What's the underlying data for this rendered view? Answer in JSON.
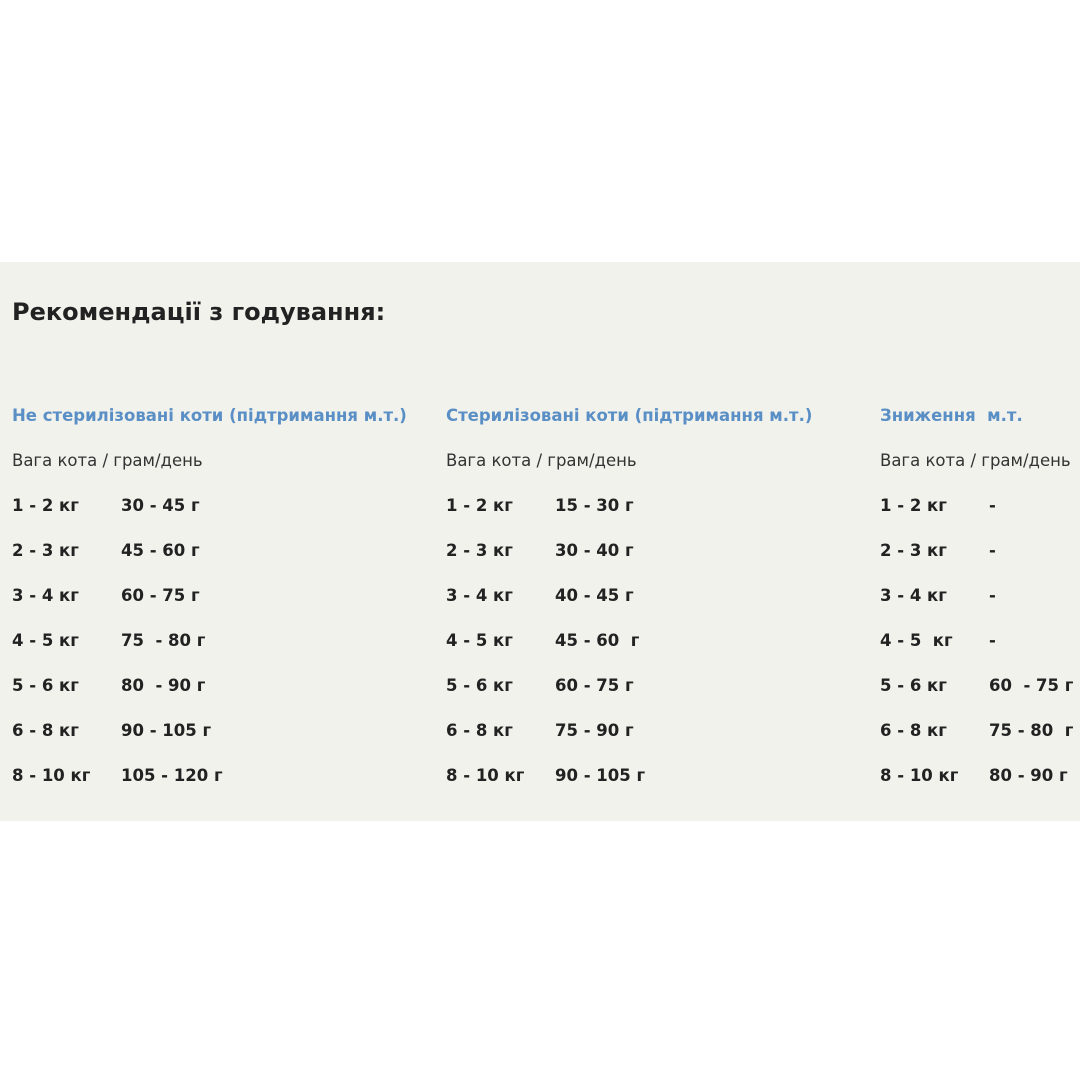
{
  "title": "Рекомендації з годування:",
  "sections": [
    {
      "heading": "Не стерилізовані коти (підтримання м.т.)",
      "subheading": "Вага кота / грам/день",
      "rows": [
        [
          "1 - 2 кг",
          "30 - 45 г"
        ],
        [
          "2 - 3 кг",
          "45 - 60 г"
        ],
        [
          "3 - 4 кг",
          "60 - 75 г"
        ],
        [
          "4 - 5 кг",
          "75  - 80 г"
        ],
        [
          "5 - 6 кг",
          "80  - 90 г"
        ],
        [
          "6 - 8 кг",
          "90 - 105 г"
        ],
        [
          "8 - 10 кг",
          "105 - 120 г"
        ]
      ]
    },
    {
      "heading": "Стерилізовані коти (підтримання м.т.)",
      "subheading": "Вага кота / грам/день",
      "rows": [
        [
          "1 - 2 кг",
          "15 - 30 г"
        ],
        [
          "2 - 3 кг",
          "30 - 40 г"
        ],
        [
          "3 - 4 кг",
          "40 - 45 г"
        ],
        [
          "4 - 5 кг",
          "45 - 60  г"
        ],
        [
          "5 - 6 кг",
          "60 - 75 г"
        ],
        [
          "6 - 8 кг",
          "75 - 90 г"
        ],
        [
          "8 - 10 кг",
          "90 - 105 г"
        ]
      ]
    },
    {
      "heading": "Зниження  м.т.",
      "subheading": "Вага кота / грам/день",
      "rows": [
        [
          "1 - 2 кг",
          "-"
        ],
        [
          "2 - 3 кг",
          "-"
        ],
        [
          "3 - 4 кг",
          "-"
        ],
        [
          "4 - 5  кг",
          "-"
        ],
        [
          "5 - 6 кг",
          "60  - 75 г"
        ],
        [
          "6 - 8 кг",
          "75 - 80  г"
        ],
        [
          "8 - 10 кг",
          "80 - 90 г"
        ]
      ]
    }
  ]
}
